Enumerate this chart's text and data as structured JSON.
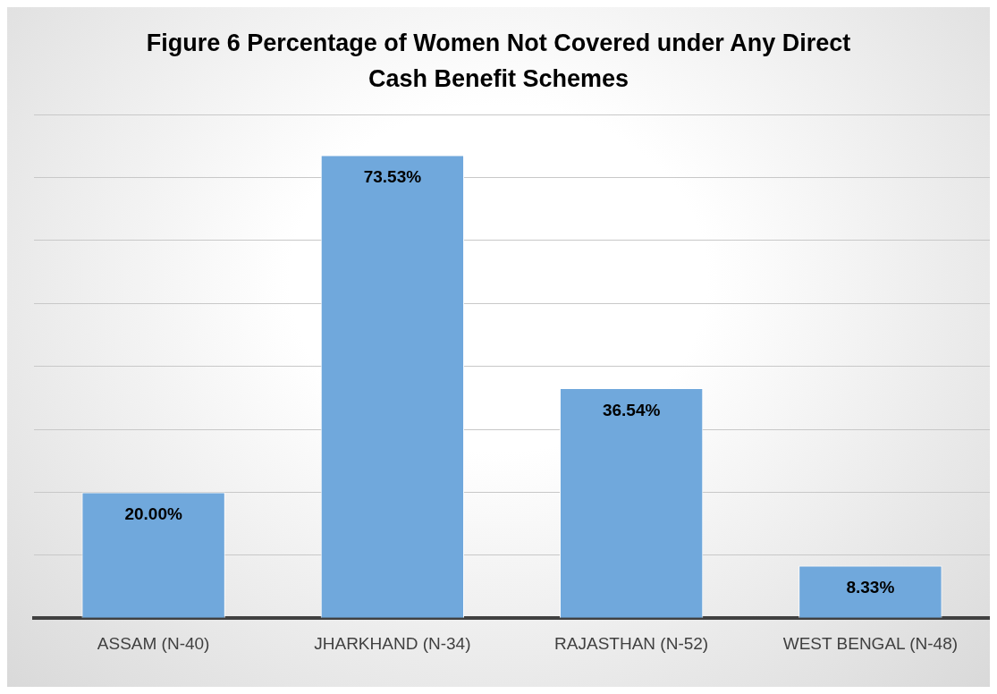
{
  "chart_data": {
    "type": "bar",
    "title": "Figure 6 Percentage of Women Not Covered under Any Direct Cash Benefit Schemes",
    "categories": [
      "ASSAM (N-40)",
      "JHARKHAND (N-34)",
      "RAJASTHAN (N-52)",
      "WEST BENGAL (N-48)"
    ],
    "values": [
      20,
      73.53,
      36.54,
      8.33
    ],
    "value_labels": [
      "20.00%",
      "73.53%",
      "36.54%",
      "8.33%"
    ],
    "color": "#70a8dc",
    "ylim": [
      0,
      80
    ],
    "yticks": [
      {
        "value": 0,
        "label": null
      },
      {
        "value": 10,
        "label": null
      },
      {
        "value": 20,
        "label": null
      },
      {
        "value": 30,
        "label": null
      },
      {
        "value": 40,
        "label": null
      },
      {
        "value": 50,
        "label": null
      },
      {
        "value": 60,
        "label": null
      },
      {
        "value": 70,
        "label": null
      },
      {
        "value": 80,
        "label": null
      }
    ],
    "grid": "y",
    "tick_labels": "x"
  }
}
